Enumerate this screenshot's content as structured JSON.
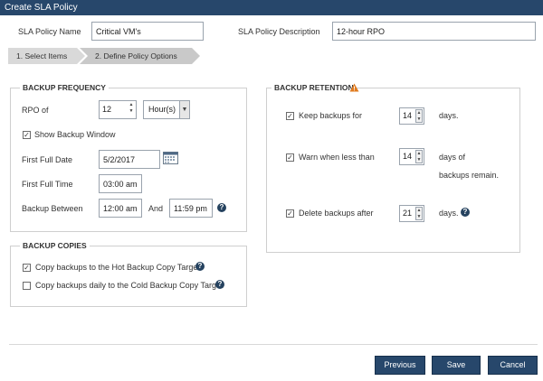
{
  "window": {
    "title": "Create SLA Policy"
  },
  "policy": {
    "name_label": "SLA Policy Name",
    "name_value": "Critical VM's",
    "description_label": "SLA Policy Description",
    "description_value": "12-hour RPO"
  },
  "steps": [
    "1. Select Items",
    "2. Define Policy Options"
  ],
  "backup_frequency": {
    "title": "BACKUP FREQUENCY",
    "rpo_label": "RPO of",
    "rpo_value": "12",
    "rpo_unit": "Hour(s)",
    "show_window_label": "Show Backup Window",
    "show_window_checked": true,
    "first_full_date_label": "First Full Date",
    "first_full_date_value": "5/2/2017",
    "first_full_time_label": "First Full Time",
    "first_full_time_value": "03:00 am",
    "between_label": "Backup Between",
    "between_start": "12:00 am",
    "and_label": "And",
    "between_end": "11:59 pm"
  },
  "backup_copies": {
    "title": "BACKUP COPIES",
    "hot_label": "Copy backups to the Hot Backup Copy Target",
    "hot_checked": true,
    "cold_label": "Copy backups daily to the Cold Backup Copy Target",
    "cold_checked": false
  },
  "backup_retention": {
    "title": "BACKUP RETENTION",
    "keep_label": "Keep backups for",
    "keep_value": "14",
    "keep_unit": "days.",
    "warn_label": "Warn when less than",
    "warn_value": "14",
    "warn_unit_line1": "days of",
    "warn_unit_line2": "backups remain.",
    "delete_label": "Delete backups after",
    "delete_value": "21",
    "delete_unit": "days."
  },
  "buttons": {
    "previous": "Previous",
    "save": "Save",
    "cancel": "Cancel"
  },
  "colors": {
    "titlebar": "#27476b",
    "button": "#27476b",
    "help": "#25425f",
    "warning": "#e07b1f"
  }
}
